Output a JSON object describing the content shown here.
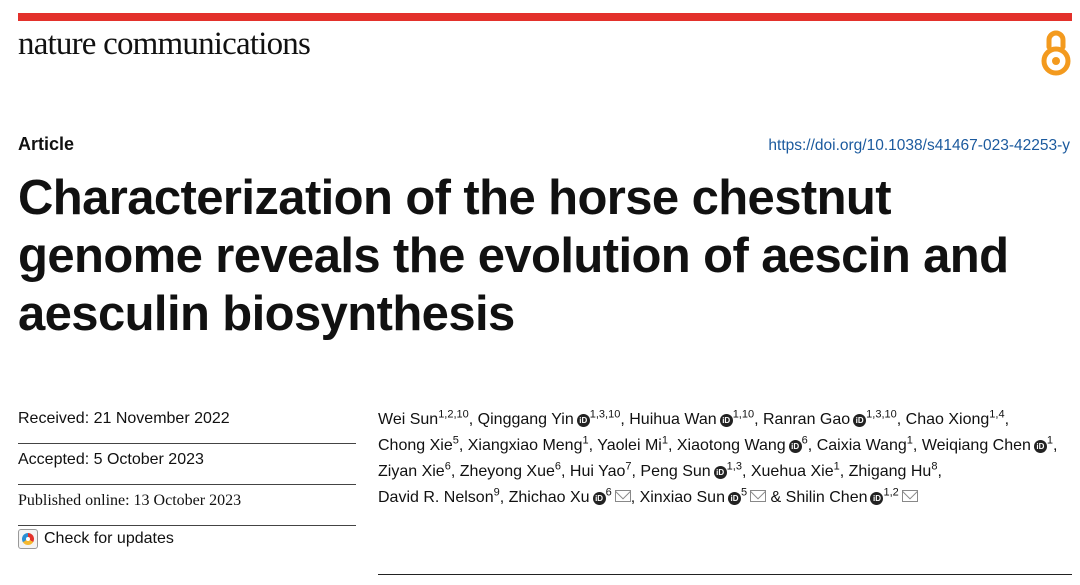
{
  "journal": {
    "name": "nature communications"
  },
  "article": {
    "type": "Article",
    "doi": "https://doi.org/10.1038/s41467-023-42253-y",
    "title": "Characterization of the horse chestnut genome reveals the evolution of aescin and aesculin biosynthesis"
  },
  "dates": {
    "received": "Received: 21 November 2022",
    "accepted": "Accepted: 5 October 2023",
    "published": "Published online: 13 October 2023"
  },
  "check_updates": "Check for updates",
  "orcid_glyph": "iD",
  "authors": [
    {
      "name": "Wei Sun",
      "aff": "1,2,10",
      "orcid": false,
      "email": false
    },
    {
      "name": "Qinggang Yin",
      "aff": "1,3,10",
      "orcid": true,
      "email": false
    },
    {
      "name": "Huihua Wan",
      "aff": "1,10",
      "orcid": true,
      "email": false
    },
    {
      "name": "Ranran Gao",
      "aff": "1,3,10",
      "orcid": true,
      "email": false
    },
    {
      "name": "Chao Xiong",
      "aff": "1,4",
      "orcid": false,
      "email": false
    },
    {
      "name": "Chong Xie",
      "aff": "5",
      "orcid": false,
      "email": false
    },
    {
      "name": "Xiangxiao Meng",
      "aff": "1",
      "orcid": false,
      "email": false
    },
    {
      "name": "Yaolei Mi",
      "aff": "1",
      "orcid": false,
      "email": false
    },
    {
      "name": "Xiaotong Wang",
      "aff": "6",
      "orcid": true,
      "email": false
    },
    {
      "name": "Caixia Wang",
      "aff": "1",
      "orcid": false,
      "email": false
    },
    {
      "name": "Weiqiang Chen",
      "aff": "1",
      "orcid": true,
      "email": false
    },
    {
      "name": "Ziyan Xie",
      "aff": "6",
      "orcid": false,
      "email": false
    },
    {
      "name": "Zheyong Xue",
      "aff": "6",
      "orcid": false,
      "email": false
    },
    {
      "name": "Hui Yao",
      "aff": "7",
      "orcid": false,
      "email": false
    },
    {
      "name": "Peng Sun",
      "aff": "1,3",
      "orcid": true,
      "email": false
    },
    {
      "name": "Xuehua Xie",
      "aff": "1",
      "orcid": false,
      "email": false
    },
    {
      "name": "Zhigang Hu",
      "aff": "8",
      "orcid": false,
      "email": false
    },
    {
      "name": "David R. Nelson",
      "aff": "9",
      "orcid": false,
      "email": false
    },
    {
      "name": "Zhichao Xu",
      "aff": "6",
      "orcid": true,
      "email": true
    },
    {
      "name": "Xinxiao Sun",
      "aff": "5",
      "orcid": true,
      "email": true
    },
    {
      "name": "Shilin Chen",
      "aff": "1,2",
      "orcid": true,
      "email": true
    }
  ],
  "colors": {
    "accent_bar": "#e3312b",
    "open_access": "#f39a1e",
    "doi_link": "#1b5a9e"
  }
}
